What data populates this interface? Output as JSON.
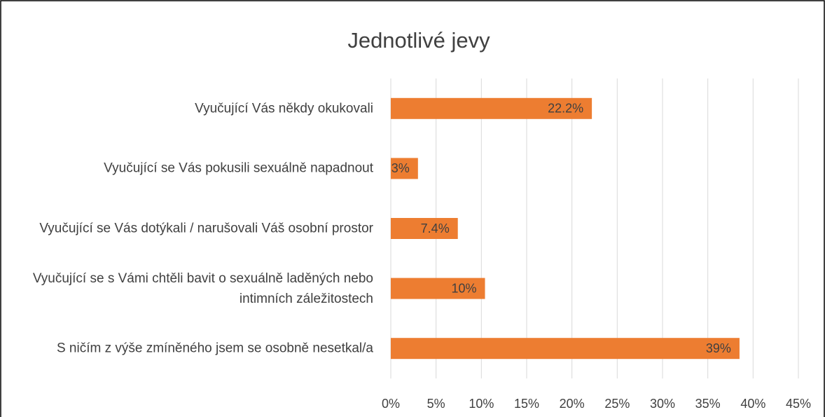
{
  "chart_data": {
    "type": "barh",
    "title": "Jednotlivé jevy",
    "categories": [
      "Vyučující Vás někdy okukovali",
      "Vyučující se Vás pokusili sexuálně napadnout",
      "Vyučující se Vás dotýkali / narušovali Váš osobní prostor",
      "Vyučující se s Vámi chtěli bavit o sexuálně laděných nebo intimních záležitostech",
      "S ničím z výše zmíněného jsem se osobně nesetkal/a"
    ],
    "values": [
      22.2,
      3,
      7.4,
      10.4,
      38.5
    ],
    "value_labels": [
      "22.2%",
      "3%",
      "7.4%",
      "10%",
      "39%"
    ],
    "color": "#ed7d31",
    "xlim": [
      0,
      45
    ],
    "xticks": [
      {
        "value": 0,
        "label": "0%"
      },
      {
        "value": 5,
        "label": "5%"
      },
      {
        "value": 10,
        "label": "10%"
      },
      {
        "value": 15,
        "label": "15%"
      },
      {
        "value": 20,
        "label": "20%"
      },
      {
        "value": 25,
        "label": "25%"
      },
      {
        "value": 30,
        "label": "30%"
      },
      {
        "value": 35,
        "label": "35%"
      },
      {
        "value": 40,
        "label": "40%"
      },
      {
        "value": 45,
        "label": "45%"
      }
    ],
    "grid": true
  }
}
